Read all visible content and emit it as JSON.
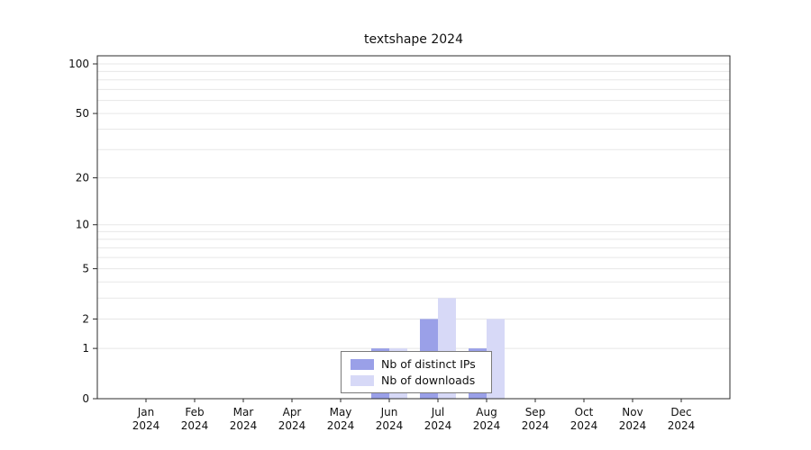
{
  "chart_data": {
    "type": "bar",
    "title": "textshape 2024",
    "categories": [
      "Jan 2024",
      "Feb 2024",
      "Mar 2024",
      "Apr 2024",
      "May 2024",
      "Jun 2024",
      "Jul 2024",
      "Aug 2024",
      "Sep 2024",
      "Oct 2024",
      "Nov 2024",
      "Dec 2024"
    ],
    "series": [
      {
        "name": "Nb of distinct IPs",
        "color": "#9aa0e8",
        "values": [
          0,
          0,
          0,
          0,
          0,
          1,
          2,
          1,
          0,
          0,
          0,
          0
        ]
      },
      {
        "name": "Nb of downloads",
        "color": "#d7d9f7",
        "values": [
          0,
          0,
          0,
          0,
          0,
          1,
          3,
          2,
          0,
          0,
          0,
          0
        ]
      }
    ],
    "y_ticks": [
      0,
      1,
      2,
      5,
      10,
      20,
      50,
      100
    ],
    "ylim": [
      0,
      100
    ],
    "y_scale": "log1p",
    "grid": "horizontal-minor",
    "legend_position": "bottom-center-inside",
    "xlabel": "",
    "ylabel": ""
  }
}
